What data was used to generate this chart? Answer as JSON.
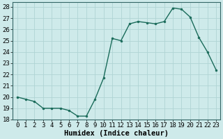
{
  "x": [
    0,
    1,
    2,
    3,
    4,
    5,
    6,
    7,
    8,
    9,
    10,
    11,
    12,
    13,
    14,
    15,
    16,
    17,
    18,
    19,
    20,
    21,
    22,
    23
  ],
  "y": [
    20.0,
    19.8,
    19.6,
    19.0,
    19.0,
    19.0,
    18.8,
    18.3,
    18.3,
    19.8,
    21.7,
    25.2,
    25.0,
    26.5,
    26.7,
    26.6,
    26.5,
    26.7,
    27.9,
    27.8,
    27.1,
    25.3,
    24.0,
    22.4
  ],
  "line_color": "#1a6b5a",
  "marker": "o",
  "marker_size": 2.0,
  "background_color": "#ceeaea",
  "grid_color": "#b0d4d4",
  "xlabel": "Humidex (Indice chaleur)",
  "xlim": [
    -0.5,
    23.5
  ],
  "ylim": [
    18,
    28.4
  ],
  "yticks": [
    18,
    19,
    20,
    21,
    22,
    23,
    24,
    25,
    26,
    27,
    28
  ],
  "xticks": [
    0,
    1,
    2,
    3,
    4,
    5,
    6,
    7,
    8,
    9,
    10,
    11,
    12,
    13,
    14,
    15,
    16,
    17,
    18,
    19,
    20,
    21,
    22,
    23
  ],
  "xlabel_fontsize": 7.5,
  "tick_fontsize": 6.5,
  "line_width": 1.0
}
